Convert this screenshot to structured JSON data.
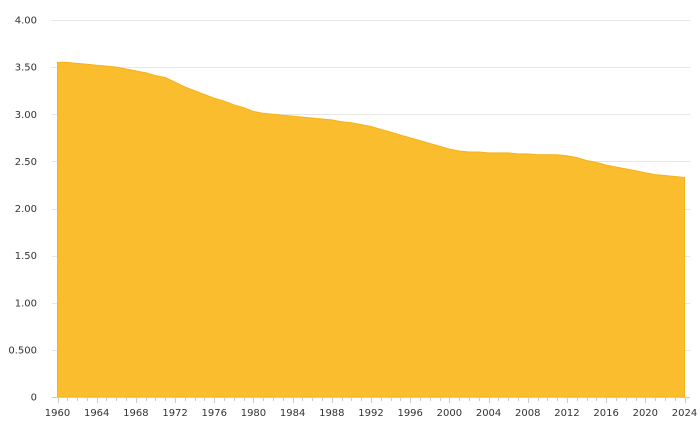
{
  "chart_data": {
    "type": "area",
    "title": "",
    "xlabel": "",
    "ylabel": "",
    "x": [
      1960,
      1961,
      1962,
      1963,
      1964,
      1965,
      1966,
      1967,
      1968,
      1969,
      1970,
      1971,
      1972,
      1973,
      1974,
      1975,
      1976,
      1977,
      1978,
      1979,
      1980,
      1981,
      1982,
      1983,
      1984,
      1985,
      1986,
      1987,
      1988,
      1989,
      1990,
      1991,
      1992,
      1993,
      1994,
      1995,
      1996,
      1997,
      1998,
      1999,
      2000,
      2001,
      2002,
      2003,
      2004,
      2005,
      2006,
      2007,
      2008,
      2009,
      2010,
      2011,
      2012,
      2013,
      2014,
      2015,
      2016,
      2017,
      2018,
      2019,
      2020,
      2021,
      2022,
      2023,
      2024
    ],
    "series": [
      {
        "values": [
          3.55,
          3.55,
          3.54,
          3.53,
          3.52,
          3.51,
          3.5,
          3.48,
          3.46,
          3.44,
          3.41,
          3.39,
          3.34,
          3.29,
          3.25,
          3.21,
          3.17,
          3.14,
          3.1,
          3.07,
          3.03,
          3.01,
          3.0,
          2.99,
          2.98,
          2.97,
          2.96,
          2.95,
          2.94,
          2.92,
          2.91,
          2.89,
          2.87,
          2.84,
          2.81,
          2.78,
          2.75,
          2.72,
          2.69,
          2.66,
          2.63,
          2.61,
          2.6,
          2.6,
          2.59,
          2.59,
          2.59,
          2.58,
          2.58,
          2.57,
          2.57,
          2.57,
          2.56,
          2.54,
          2.51,
          2.49,
          2.46,
          2.44,
          2.42,
          2.4,
          2.38,
          2.36,
          2.35,
          2.34,
          2.33
        ],
        "color": "#f9b922"
      }
    ],
    "ylim": [
      0,
      4
    ],
    "xlim": [
      1960,
      2024
    ],
    "y_ticks": [
      0,
      0.5,
      1,
      1.5,
      2,
      2.5,
      3,
      3.5,
      4
    ],
    "y_tick_labels": [
      "0",
      "0.500",
      "1.00",
      "1.50",
      "2.00",
      "2.50",
      "3.00",
      "3.50",
      "4.00"
    ],
    "x_ticks": [
      1960,
      1964,
      1968,
      1972,
      1976,
      1980,
      1984,
      1988,
      1992,
      1996,
      2000,
      2004,
      2008,
      2012,
      2016,
      2020,
      2024
    ],
    "x_tick_labels": [
      "1960",
      "1964",
      "1968",
      "1972",
      "1976",
      "1980",
      "1984",
      "1988",
      "1992",
      "1996",
      "2000",
      "2004",
      "2008",
      "2012",
      "2016",
      "2020",
      "2024"
    ],
    "grid": true,
    "legend": "none"
  }
}
